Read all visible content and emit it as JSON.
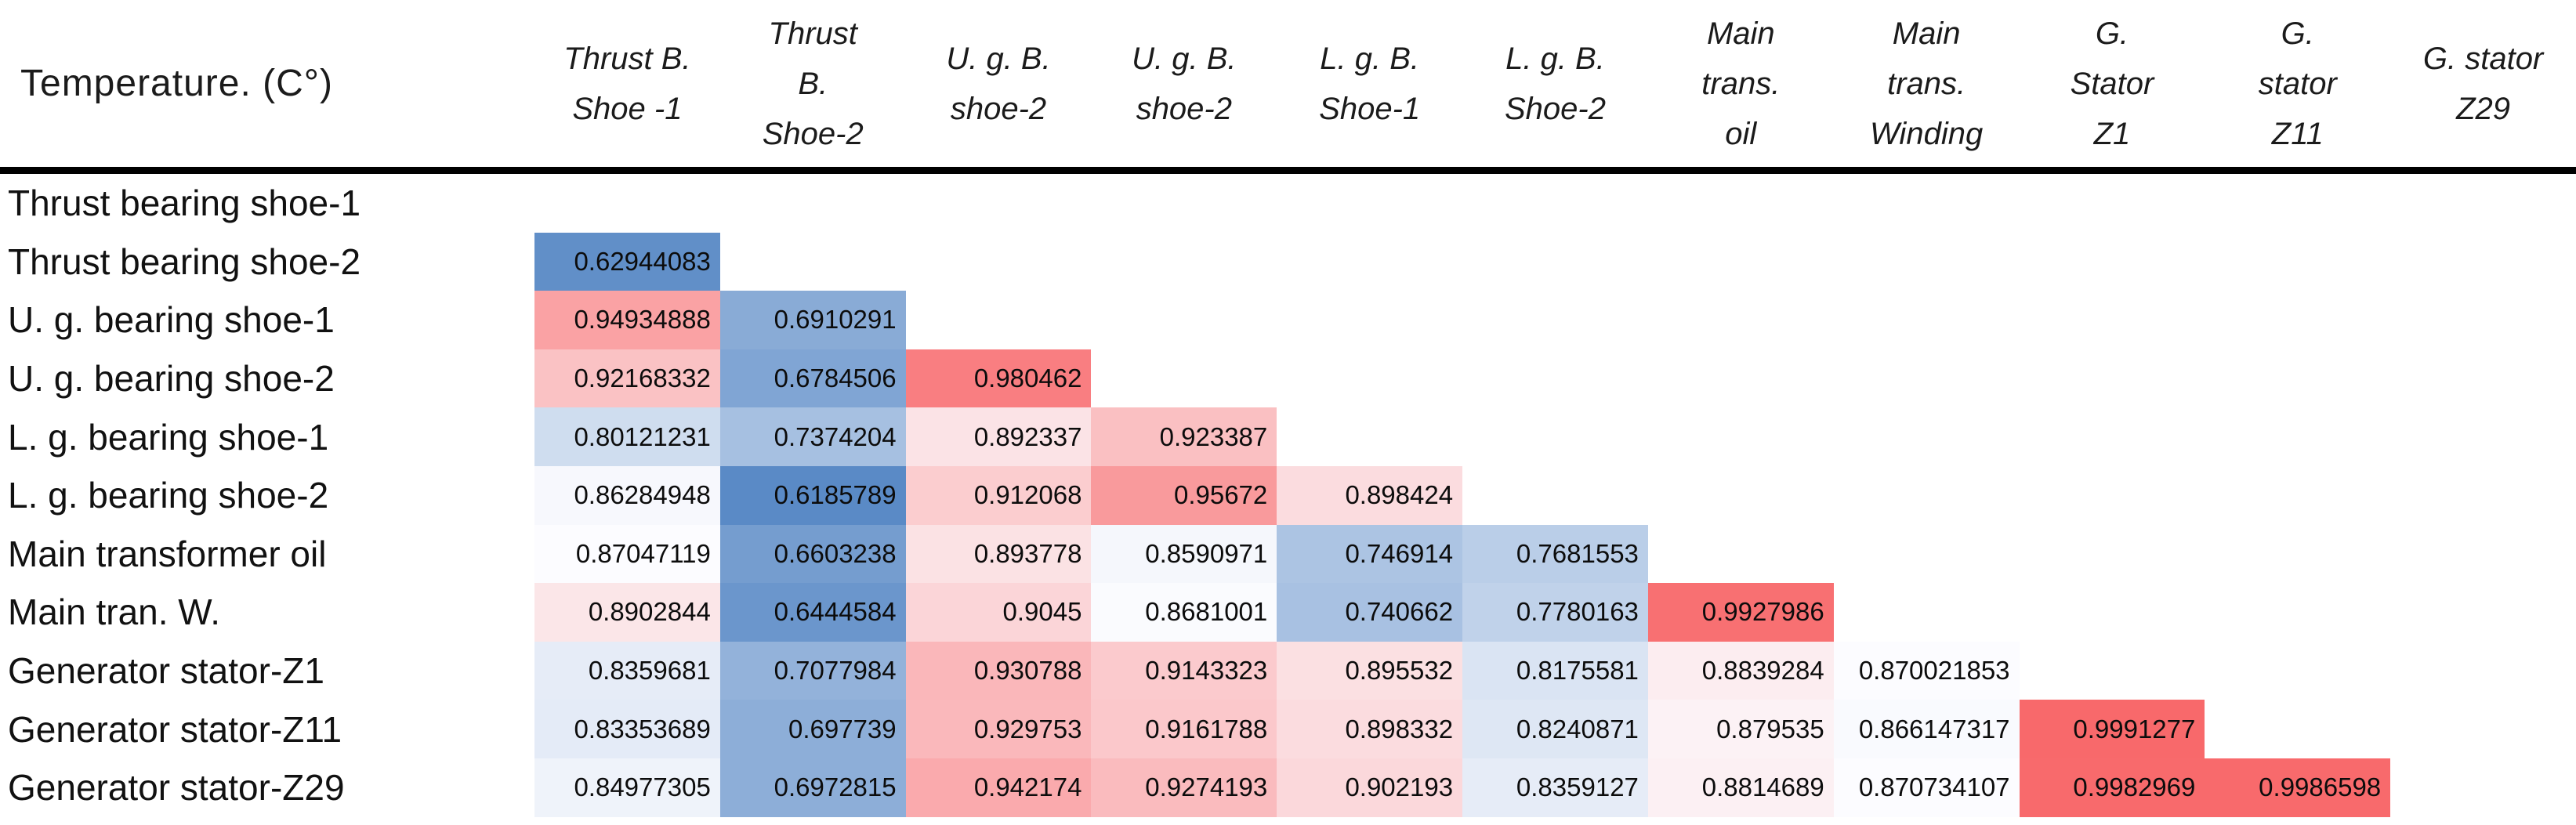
{
  "chart_data": {
    "type": "heatmap",
    "title": "Temperature. (C°)",
    "legend": "none",
    "grid": "off",
    "cell_text_align": "right",
    "columns": [
      [
        "Thrust B.",
        "Shoe -1"
      ],
      [
        "Thrust",
        "B.",
        "Shoe-2"
      ],
      [
        "U. g. B.",
        "shoe-2"
      ],
      [
        "U. g. B.",
        "shoe-2"
      ],
      [
        "L. g. B.",
        "Shoe-1"
      ],
      [
        "L. g. B.",
        "Shoe-2"
      ],
      [
        "Main",
        "trans.",
        "oil"
      ],
      [
        "Main",
        "trans.",
        "Winding"
      ],
      [
        "G.",
        "Stator",
        "Z1"
      ],
      [
        "G.",
        "stator",
        "Z11"
      ],
      [
        "G. stator",
        "Z29"
      ]
    ],
    "rows": [
      "Thrust bearing shoe-1",
      "Thrust bearing shoe-2",
      "U. g. bearing shoe-1",
      "U. g. bearing shoe-2",
      "L. g. bearing shoe-1",
      "L. g. bearing shoe-2",
      "Main transformer oil",
      "Main tran. W.",
      "Generator stator-Z1",
      "Generator stator-Z11",
      "Generator stator-Z29"
    ],
    "matrix": [
      [
        null,
        null,
        null,
        null,
        null,
        null,
        null,
        null,
        null,
        null,
        null
      ],
      [
        0.62944083,
        null,
        null,
        null,
        null,
        null,
        null,
        null,
        null,
        null,
        null
      ],
      [
        0.94934888,
        0.6910291,
        null,
        null,
        null,
        null,
        null,
        null,
        null,
        null,
        null
      ],
      [
        0.92168332,
        0.6784506,
        0.980462,
        null,
        null,
        null,
        null,
        null,
        null,
        null,
        null
      ],
      [
        0.80121231,
        0.7374204,
        0.892337,
        0.923387,
        null,
        null,
        null,
        null,
        null,
        null,
        null
      ],
      [
        0.86284948,
        0.6185789,
        0.912068,
        0.95672,
        0.898424,
        null,
        null,
        null,
        null,
        null,
        null
      ],
      [
        0.87047119,
        0.6603238,
        0.893778,
        0.8590971,
        0.746914,
        0.7681553,
        null,
        null,
        null,
        null,
        null
      ],
      [
        0.8902844,
        0.6444584,
        0.9045,
        0.8681001,
        0.740662,
        0.7780163,
        0.9927986,
        null,
        null,
        null,
        null
      ],
      [
        0.8359681,
        0.7077984,
        0.930788,
        0.9143323,
        0.895532,
        0.8175581,
        0.8839284,
        0.870021853,
        null,
        null,
        null
      ],
      [
        0.83353689,
        0.697739,
        0.929753,
        0.9161788,
        0.898332,
        0.8240871,
        0.879535,
        0.866147317,
        0.9991277,
        null,
        null
      ],
      [
        0.84977305,
        0.6972815,
        0.942174,
        0.9274193,
        0.902193,
        0.8359127,
        0.8814689,
        0.870734107,
        0.9982969,
        0.9986598,
        null
      ]
    ],
    "color_scale": {
      "style": "3-color",
      "min_value": 0.6185789,
      "mid_value": 0.870734107,
      "max_value": 0.9991277,
      "min_color": "#5A8AC6",
      "mid_color": "#FCFCFF",
      "max_color": "#F8696B"
    },
    "header_rule_color": "#000000"
  }
}
